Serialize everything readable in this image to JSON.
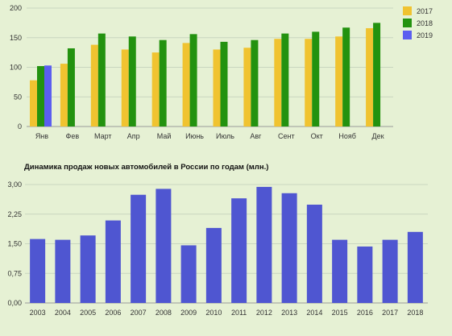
{
  "chart_data": [
    {
      "type": "bar",
      "categories": [
        "Янв",
        "Фев",
        "Март",
        "Апр",
        "Май",
        "Июнь",
        "Июль",
        "Авг",
        "Сент",
        "Окт",
        "Нояб",
        "Дек"
      ],
      "series": [
        {
          "name": "2017",
          "color": "#f0c330",
          "values": [
            78,
            106,
            138,
            130,
            125,
            141,
            130,
            133,
            148,
            148,
            152,
            166
          ]
        },
        {
          "name": "2018",
          "color": "#23920f",
          "values": [
            102,
            132,
            157,
            152,
            146,
            156,
            143,
            146,
            157,
            160,
            167,
            175
          ]
        },
        {
          "name": "2019",
          "color": "#5b5ef0",
          "values": [
            103,
            null,
            null,
            null,
            null,
            null,
            null,
            null,
            null,
            null,
            null,
            null
          ]
        }
      ],
      "yticks": [
        "0",
        "50",
        "100",
        "150",
        "200"
      ],
      "ylim": [
        0,
        200
      ],
      "grid": true,
      "legend": "top-right"
    },
    {
      "type": "bar",
      "title": "Динамика продаж новых автомобилей в России по годам (млн.)",
      "categories": [
        "2003",
        "2004",
        "2005",
        "2006",
        "2007",
        "2008",
        "2009",
        "2010",
        "2011",
        "2012",
        "2013",
        "2014",
        "2015",
        "2016",
        "2017",
        "2018"
      ],
      "series": [
        {
          "color": "#4f56d1",
          "values": [
            1.62,
            1.6,
            1.71,
            2.09,
            2.74,
            2.89,
            1.46,
            1.9,
            2.65,
            2.94,
            2.78,
            2.49,
            1.6,
            1.43,
            1.6,
            1.8
          ]
        }
      ],
      "yticks": [
        "0,00",
        "0,75",
        "1,50",
        "2,25",
        "3,00"
      ],
      "ylim": [
        0,
        3
      ],
      "grid": true
    }
  ]
}
